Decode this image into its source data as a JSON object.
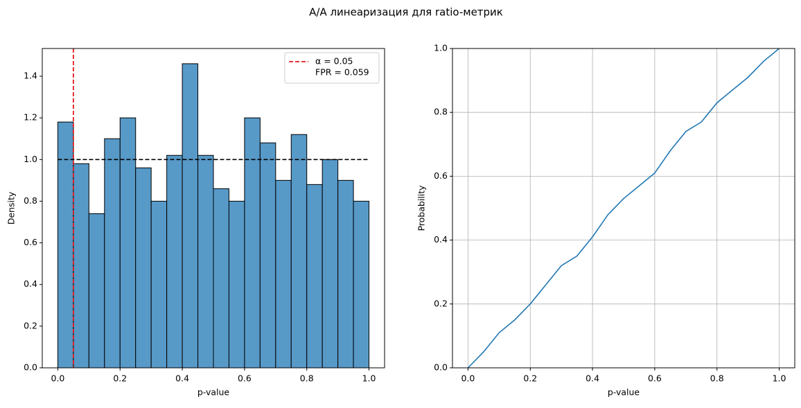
{
  "title": "A/A линеаризация для ratio-метрик",
  "chart_data": [
    {
      "type": "histogram",
      "xlabel": "p-value",
      "ylabel": "Density",
      "bins": [
        0,
        0.05,
        0.1,
        0.15,
        0.2,
        0.25,
        0.3,
        0.35,
        0.4,
        0.45,
        0.5,
        0.55,
        0.6,
        0.65,
        0.7,
        0.75,
        0.8,
        0.85,
        0.9,
        0.95,
        1.0
      ],
      "values": [
        1.18,
        0.98,
        0.74,
        1.1,
        1.2,
        0.96,
        0.8,
        1.02,
        1.46,
        1.02,
        0.86,
        0.8,
        1.2,
        1.08,
        0.9,
        1.12,
        0.88,
        1.0,
        0.9,
        0.8
      ],
      "color": "#5799c7",
      "edgecolor": "#000000",
      "xlim": [
        -0.05,
        1.05
      ],
      "ylim": [
        0,
        1.533
      ],
      "xticks": [
        {
          "value": 0,
          "label": "0.0"
        },
        {
          "value": 0.2,
          "label": "0.2"
        },
        {
          "value": 0.4,
          "label": "0.4"
        },
        {
          "value": 0.6,
          "label": "0.6"
        },
        {
          "value": 0.8,
          "label": "0.8"
        },
        {
          "value": 1,
          "label": "1.0"
        }
      ],
      "yticks": [
        {
          "value": 0,
          "label": "0.0"
        },
        {
          "value": 0.2,
          "label": "0.2"
        },
        {
          "value": 0.4,
          "label": "0.4"
        },
        {
          "value": 0.6,
          "label": "0.6"
        },
        {
          "value": 0.8,
          "label": "0.8"
        },
        {
          "value": 1,
          "label": "1.0"
        },
        {
          "value": 1.2,
          "label": "1.2"
        },
        {
          "value": 1.4,
          "label": "1.4"
        }
      ],
      "grid": false,
      "vlines": [
        {
          "name": "α = 0.05",
          "x": 0.05,
          "color": "#e41a1c"
        }
      ],
      "hline": {
        "y": 1,
        "xmin": 0,
        "xmax": 1,
        "color": "#000000"
      },
      "legend_text": "FPR = 0.059",
      "legend": "upper right"
    },
    {
      "type": "line",
      "xlabel": "p-value",
      "ylabel": "Probability",
      "x": [
        0,
        0.05,
        0.1,
        0.15,
        0.2,
        0.25,
        0.3,
        0.35,
        0.4,
        0.45,
        0.5,
        0.55,
        0.6,
        0.65,
        0.7,
        0.75,
        0.8,
        0.85,
        0.9,
        0.95,
        1.0
      ],
      "series": [
        {
          "color": "#1f77b4",
          "values": [
            0,
            0.05,
            0.11,
            0.15,
            0.2,
            0.26,
            0.32,
            0.35,
            0.41,
            0.48,
            0.53,
            0.57,
            0.61,
            0.68,
            0.74,
            0.77,
            0.83,
            0.87,
            0.91,
            0.96,
            1.0
          ]
        }
      ],
      "xlim": [
        -0.05,
        1.05
      ],
      "ylim": [
        0,
        1
      ],
      "xticks": [
        {
          "value": 0,
          "label": "0.0"
        },
        {
          "value": 0.2,
          "label": "0.2"
        },
        {
          "value": 0.4,
          "label": "0.4"
        },
        {
          "value": 0.6,
          "label": "0.6"
        },
        {
          "value": 0.8,
          "label": "0.8"
        },
        {
          "value": 1,
          "label": "1.0"
        }
      ],
      "yticks": [
        {
          "value": 0,
          "label": "0.0"
        },
        {
          "value": 0.2,
          "label": "0.2"
        },
        {
          "value": 0.4,
          "label": "0.4"
        },
        {
          "value": 0.6,
          "label": "0.6"
        },
        {
          "value": 0.8,
          "label": "0.8"
        },
        {
          "value": 1,
          "label": "1.0"
        }
      ],
      "grid": true
    }
  ]
}
